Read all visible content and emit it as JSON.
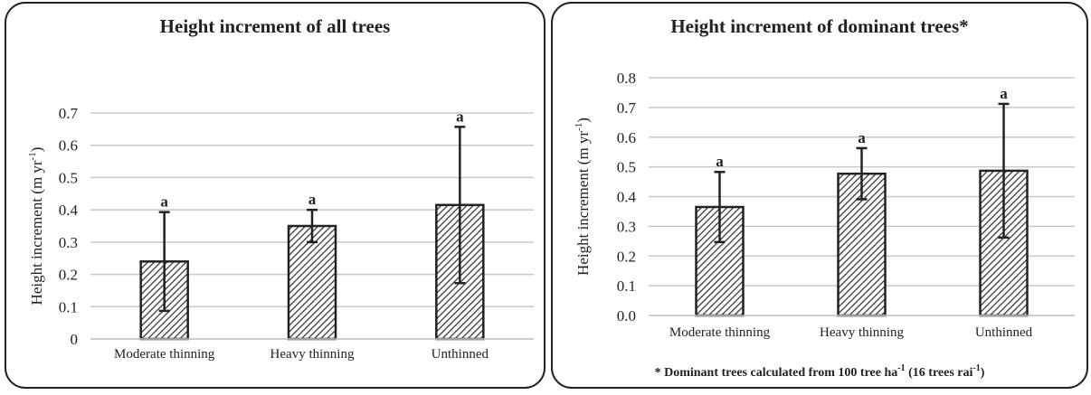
{
  "chart_data": [
    {
      "type": "bar",
      "title": "Height increment of all trees",
      "y_label": {
        "base": "Height increment (m yr",
        "superscript": "-1",
        "tail": ")"
      },
      "categories": [
        "Moderate thinning",
        "Heavy thinning",
        "Unthinned"
      ],
      "values": [
        0.24,
        0.35,
        0.415
      ],
      "errors": [
        0.153,
        0.05,
        0.242
      ],
      "significance": [
        "a",
        "a",
        "a"
      ],
      "ylim": [
        0,
        0.7
      ],
      "yticks": [
        0,
        0.1,
        0.2,
        0.3,
        0.4,
        0.5,
        0.6,
        0.7
      ],
      "grid": true,
      "color": "#222222"
    },
    {
      "type": "bar",
      "title": "Height increment of dominant trees*",
      "y_label": {
        "base": "Height increment (m yr",
        "superscript": "-1",
        "tail": ")"
      },
      "categories": [
        "Moderate thinning",
        "Heavy thinning",
        "Unthinned"
      ],
      "values": [
        0.365,
        0.477,
        0.487
      ],
      "errors": [
        0.118,
        0.086,
        0.225
      ],
      "significance": [
        "a",
        "a",
        "a"
      ],
      "ylim": [
        0,
        0.8
      ],
      "yticks": [
        {
          "value": 0,
          "label": "0.0"
        },
        0.1,
        0.2,
        0.3,
        0.4,
        0.5,
        0.6,
        0.7,
        0.8
      ],
      "grid": true,
      "color": "#222222",
      "footnote": [
        {
          "text": "* Dominant trees calculated from 100 tree ha"
        },
        {
          "superscript": "-1"
        },
        {
          "text": " (16 trees rai"
        },
        {
          "superscript": "-1"
        },
        {
          "text": ")"
        }
      ]
    }
  ]
}
